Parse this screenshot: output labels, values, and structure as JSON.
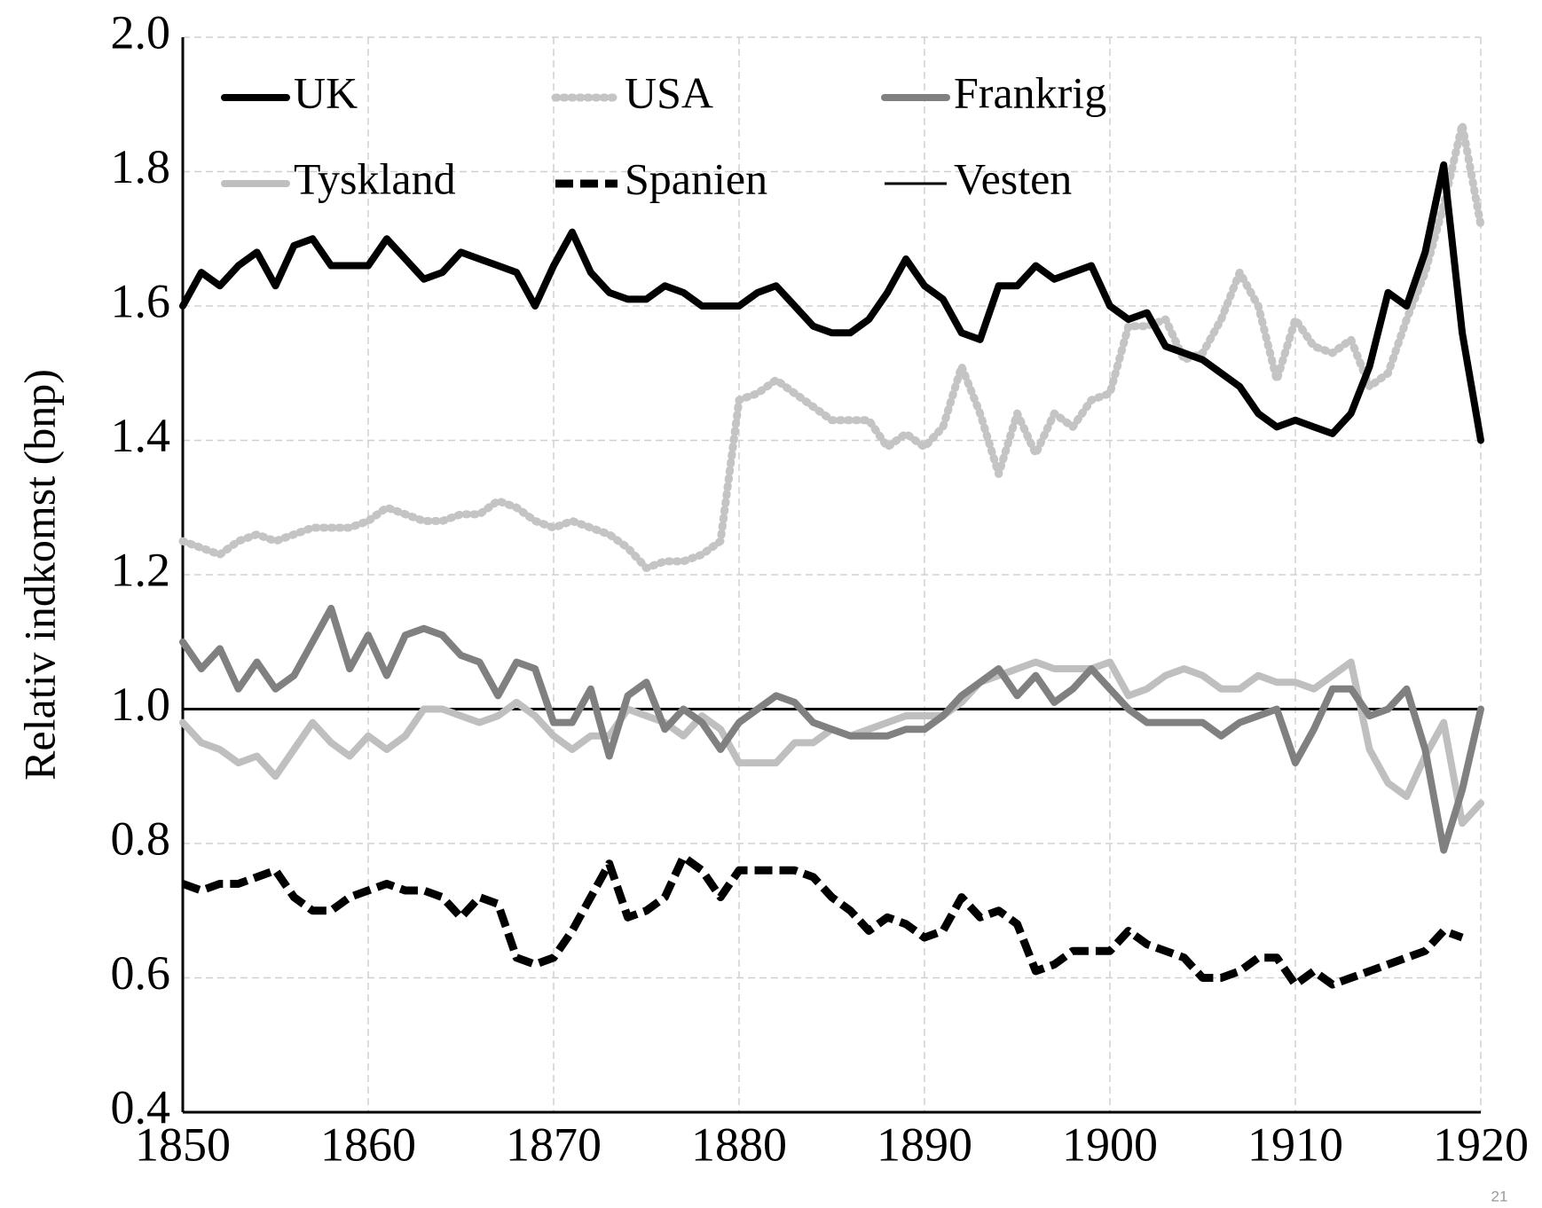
{
  "chart_data": {
    "type": "line",
    "y_label": "Relativ indkomst (bnp)",
    "x": [
      1850,
      1851,
      1852,
      1853,
      1854,
      1855,
      1856,
      1857,
      1858,
      1859,
      1860,
      1861,
      1862,
      1863,
      1864,
      1865,
      1866,
      1867,
      1868,
      1869,
      1870,
      1871,
      1872,
      1873,
      1874,
      1875,
      1876,
      1877,
      1878,
      1879,
      1880,
      1881,
      1882,
      1883,
      1884,
      1885,
      1886,
      1887,
      1888,
      1889,
      1890,
      1891,
      1892,
      1893,
      1894,
      1895,
      1896,
      1897,
      1898,
      1899,
      1900,
      1901,
      1902,
      1903,
      1904,
      1905,
      1906,
      1907,
      1908,
      1909,
      1910,
      1911,
      1912,
      1913,
      1914,
      1915,
      1916,
      1917,
      1918,
      1919,
      1920
    ],
    "series": [
      {
        "name": "UK",
        "color": "#000000",
        "style": "solid",
        "values": [
          1.6,
          1.65,
          1.63,
          1.66,
          1.68,
          1.63,
          1.69,
          1.7,
          1.66,
          1.66,
          1.66,
          1.7,
          1.67,
          1.64,
          1.65,
          1.68,
          1.67,
          1.66,
          1.65,
          1.6,
          1.66,
          1.71,
          1.65,
          1.62,
          1.61,
          1.61,
          1.63,
          1.62,
          1.6,
          1.6,
          1.6,
          1.62,
          1.63,
          1.6,
          1.57,
          1.56,
          1.56,
          1.58,
          1.62,
          1.67,
          1.63,
          1.61,
          1.56,
          1.55,
          1.63,
          1.63,
          1.66,
          1.64,
          1.65,
          1.66,
          1.6,
          1.58,
          1.59,
          1.54,
          1.53,
          1.52,
          1.5,
          1.48,
          1.44,
          1.42,
          1.43,
          1.42,
          1.41,
          1.44,
          1.51,
          1.62,
          1.6,
          1.68,
          1.81,
          1.56,
          1.4
        ]
      },
      {
        "name": "USA",
        "color": "#c4c4c4",
        "style": "dotted",
        "values": [
          1.25,
          1.24,
          1.23,
          1.25,
          1.26,
          1.25,
          1.26,
          1.27,
          1.27,
          1.27,
          1.28,
          1.3,
          1.29,
          1.28,
          1.28,
          1.29,
          1.29,
          1.31,
          1.3,
          1.28,
          1.27,
          1.28,
          1.27,
          1.26,
          1.24,
          1.21,
          1.22,
          1.22,
          1.23,
          1.25,
          1.46,
          1.47,
          1.49,
          1.47,
          1.45,
          1.43,
          1.43,
          1.43,
          1.39,
          1.41,
          1.39,
          1.42,
          1.51,
          1.44,
          1.35,
          1.44,
          1.38,
          1.44,
          1.42,
          1.46,
          1.47,
          1.57,
          1.57,
          1.58,
          1.52,
          1.53,
          1.58,
          1.65,
          1.6,
          1.49,
          1.58,
          1.54,
          1.53,
          1.55,
          1.48,
          1.5,
          1.58,
          1.65,
          1.75,
          1.87,
          1.72
        ]
      },
      {
        "name": "Frankrig",
        "color": "#808080",
        "style": "solid",
        "values": [
          1.1,
          1.06,
          1.09,
          1.03,
          1.07,
          1.03,
          1.05,
          1.1,
          1.15,
          1.06,
          1.11,
          1.05,
          1.11,
          1.12,
          1.11,
          1.08,
          1.07,
          1.02,
          1.07,
          1.06,
          0.98,
          0.98,
          1.03,
          0.93,
          1.02,
          1.04,
          0.97,
          1.0,
          0.98,
          0.94,
          0.98,
          1.0,
          1.02,
          1.01,
          0.98,
          0.97,
          0.96,
          0.96,
          0.96,
          0.97,
          0.97,
          0.99,
          1.02,
          1.04,
          1.06,
          1.02,
          1.05,
          1.01,
          1.03,
          1.06,
          1.03,
          1.0,
          0.98,
          0.98,
          0.98,
          0.98,
          0.96,
          0.98,
          0.99,
          1.0,
          0.92,
          0.97,
          1.03,
          1.03,
          0.99,
          1.0,
          1.03,
          0.94,
          0.79,
          0.88,
          1.0
        ]
      },
      {
        "name": "Tyskland",
        "color": "#bfbfbf",
        "style": "solid",
        "values": [
          0.98,
          0.95,
          0.94,
          0.92,
          0.93,
          0.9,
          0.94,
          0.98,
          0.95,
          0.93,
          0.96,
          0.94,
          0.96,
          1.0,
          1.0,
          0.99,
          0.98,
          0.99,
          1.01,
          0.99,
          0.96,
          0.94,
          0.96,
          0.96,
          1.0,
          0.99,
          0.98,
          0.96,
          0.99,
          0.97,
          0.92,
          0.92,
          0.92,
          0.95,
          0.95,
          0.97,
          0.96,
          0.97,
          0.98,
          0.99,
          0.99,
          0.99,
          1.01,
          1.04,
          1.05,
          1.06,
          1.07,
          1.06,
          1.06,
          1.06,
          1.07,
          1.02,
          1.03,
          1.05,
          1.06,
          1.05,
          1.03,
          1.03,
          1.05,
          1.04,
          1.04,
          1.03,
          1.05,
          1.07,
          0.94,
          0.89,
          0.87,
          0.93,
          0.98,
          0.83,
          0.86
        ]
      },
      {
        "name": "Spanien",
        "color": "#000000",
        "style": "dashed",
        "values": [
          0.74,
          0.73,
          0.74,
          0.74,
          0.75,
          0.76,
          0.72,
          0.7,
          0.7,
          0.72,
          0.73,
          0.74,
          0.73,
          0.73,
          0.72,
          0.69,
          0.72,
          0.71,
          0.63,
          0.62,
          0.63,
          0.67,
          0.72,
          0.77,
          0.69,
          0.7,
          0.72,
          0.78,
          0.76,
          0.72,
          0.76,
          0.76,
          0.76,
          0.76,
          0.75,
          0.72,
          0.7,
          0.67,
          0.69,
          0.68,
          0.66,
          0.67,
          0.72,
          0.69,
          0.7,
          0.68,
          0.61,
          0.62,
          0.64,
          0.64,
          0.64,
          0.67,
          0.65,
          0.64,
          0.63,
          0.6,
          0.6,
          0.61,
          0.63,
          0.63,
          0.59,
          0.61,
          0.59,
          0.6,
          0.61,
          0.62,
          0.63,
          0.64,
          0.67,
          0.66,
          null
        ]
      },
      {
        "name": "Vesten",
        "color": "#000000",
        "style": "thin",
        "values": [
          1,
          1,
          1,
          1,
          1,
          1,
          1,
          1,
          1,
          1,
          1,
          1,
          1,
          1,
          1,
          1,
          1,
          1,
          1,
          1,
          1,
          1,
          1,
          1,
          1,
          1,
          1,
          1,
          1,
          1,
          1,
          1,
          1,
          1,
          1,
          1,
          1,
          1,
          1,
          1,
          1,
          1,
          1,
          1,
          1,
          1,
          1,
          1,
          1,
          1,
          1,
          1,
          1,
          1,
          1,
          1,
          1,
          1,
          1,
          1,
          1,
          1,
          1,
          1,
          1,
          1,
          1,
          1,
          1,
          1,
          1
        ]
      }
    ],
    "xlim": [
      1850,
      1920
    ],
    "xticks": [
      1850,
      1860,
      1870,
      1880,
      1890,
      1900,
      1910,
      1920
    ],
    "ylim": [
      0.4,
      2.0
    ],
    "yticks": [
      {
        "value": 0.4,
        "label": "0.4"
      },
      {
        "value": 0.6,
        "label": "0.6"
      },
      {
        "value": 0.8,
        "label": "0.8"
      },
      {
        "value": 1.0,
        "label": "1.0"
      },
      {
        "value": 1.2,
        "label": "1.2"
      },
      {
        "value": 1.4,
        "label": "1.4"
      },
      {
        "value": 1.6,
        "label": "1.6"
      },
      {
        "value": 1.8,
        "label": "1.8"
      },
      {
        "value": 2.0,
        "label": "2.0"
      }
    ],
    "grid": true,
    "legend": "top-left"
  },
  "page_number": "21"
}
